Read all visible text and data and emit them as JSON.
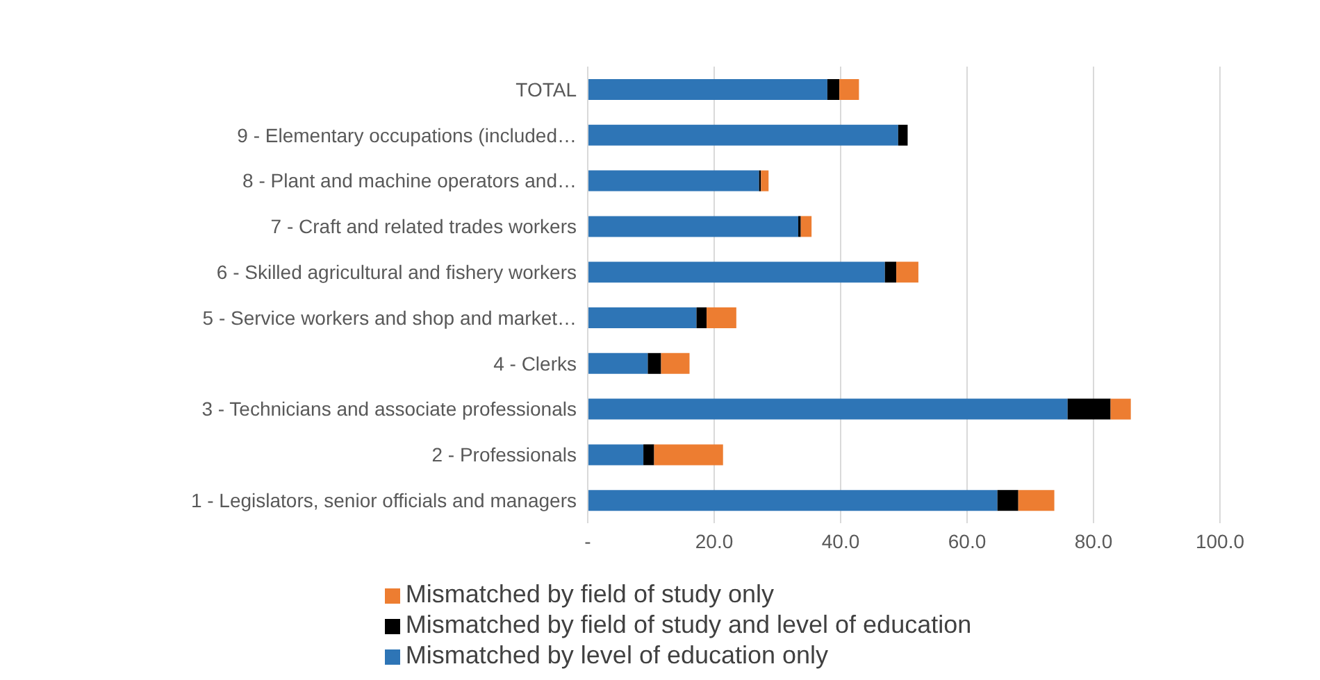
{
  "chart_data": {
    "type": "bar",
    "orientation": "horizontal",
    "stacked": true,
    "categories": [
      "TOTAL",
      "9 - Elementary occupations (included…",
      "8 - Plant and machine operators and…",
      "7 - Craft and related trades workers",
      "6 - Skilled agricultural and fishery workers",
      "5 - Service workers and shop and market…",
      "4 - Clerks",
      "3 - Technicians and associate professionals",
      "2 - Professionals",
      "1 - Legislators, senior officials and managers"
    ],
    "series": [
      {
        "name": "Mismatched by level of education only",
        "color": "#2e75b6",
        "values": [
          37.9,
          49.1,
          27.1,
          33.3,
          47.0,
          17.2,
          9.5,
          75.9,
          8.8,
          64.8
        ]
      },
      {
        "name": "Mismatched by field of study and level of education",
        "color": "#000000",
        "values": [
          1.9,
          1.5,
          0.3,
          0.4,
          1.8,
          1.6,
          2.1,
          6.8,
          1.7,
          3.3
        ]
      },
      {
        "name": "Mismatched by field of study  only",
        "color": "#ed7d31",
        "values": [
          3.1,
          0,
          1.2,
          1.7,
          3.5,
          4.7,
          4.5,
          3.2,
          10.9,
          5.7
        ]
      }
    ],
    "xlim": [
      0,
      100
    ],
    "xticks": [
      {
        "value": 0,
        "label": "-"
      },
      {
        "value": 20,
        "label": "20.0"
      },
      {
        "value": 40,
        "label": "40.0"
      },
      {
        "value": 60,
        "label": "60.0"
      },
      {
        "value": 80,
        "label": "80.0"
      },
      {
        "value": 100,
        "label": "100.0"
      }
    ],
    "grid": "x",
    "legend": "bottom"
  }
}
